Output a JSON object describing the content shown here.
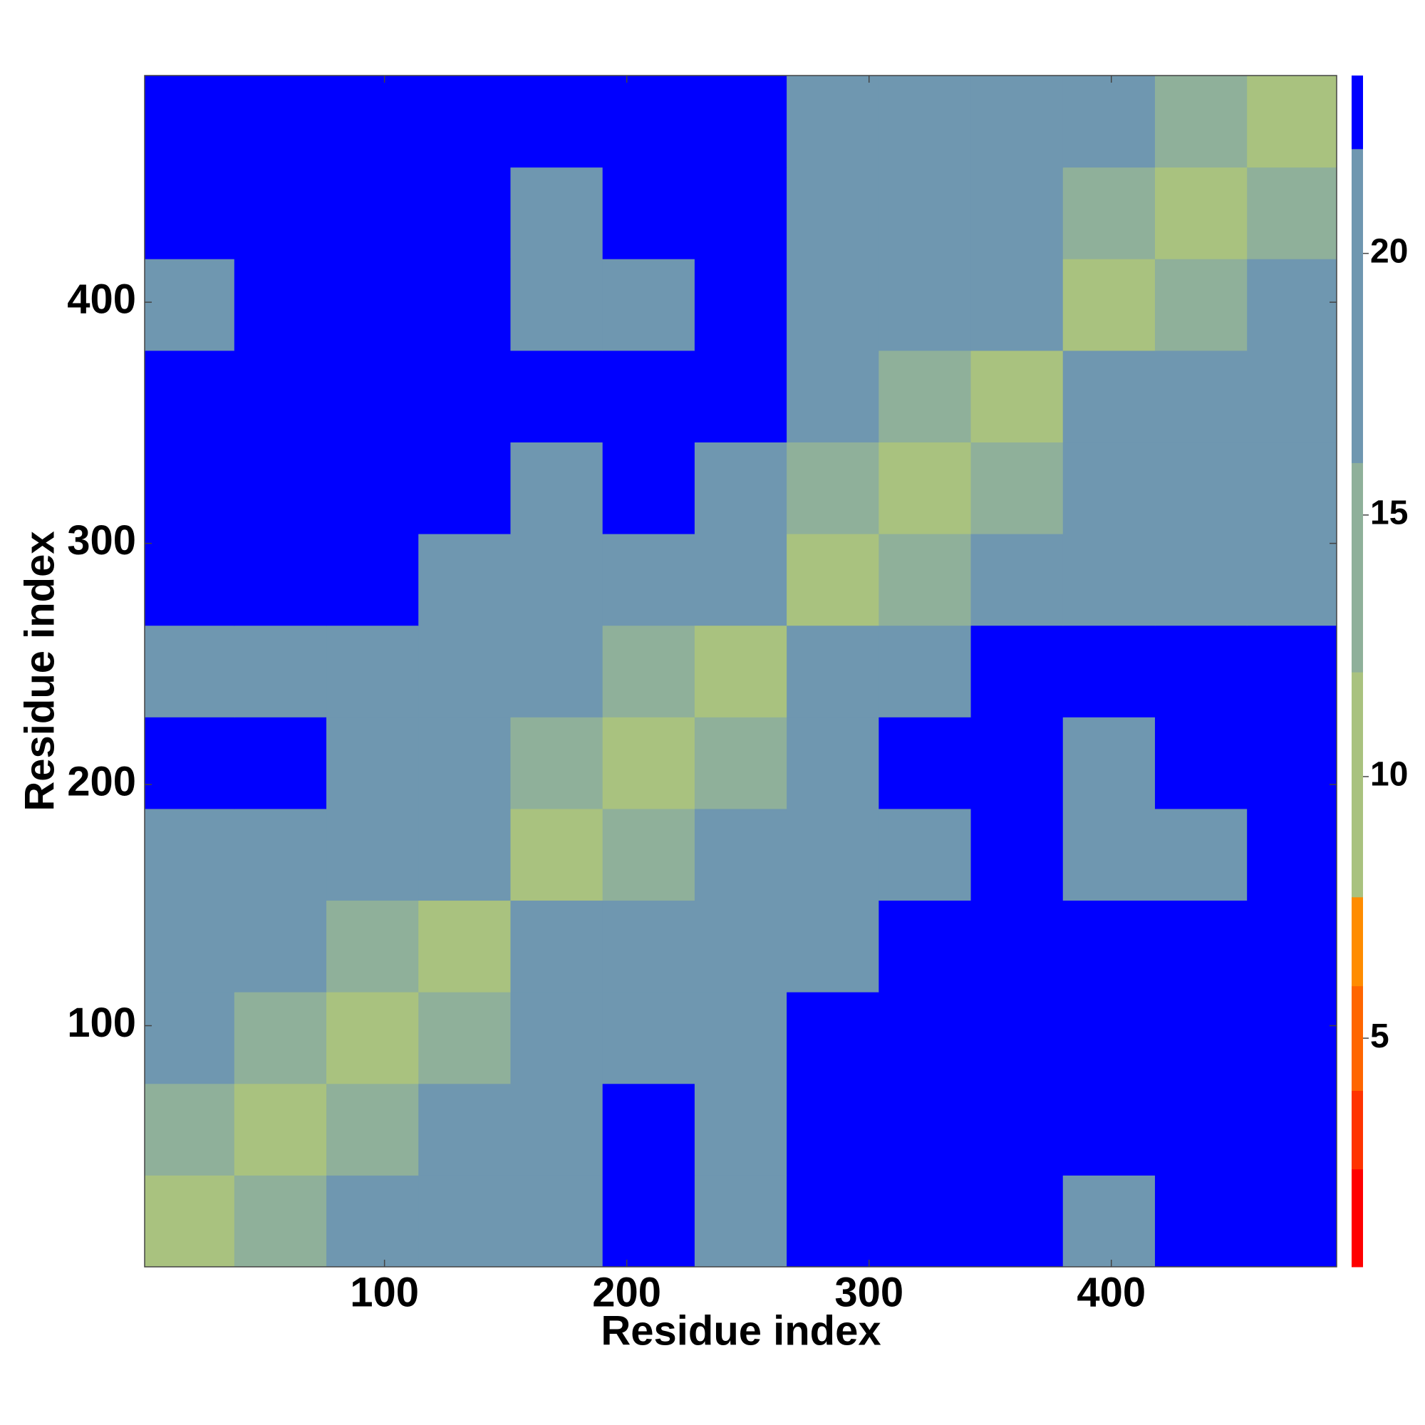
{
  "chart_data": {
    "type": "heatmap",
    "xlabel": "Residue index",
    "ylabel": "Residue index",
    "xlim": [
      1,
      493
    ],
    "ylim": [
      0,
      494
    ],
    "xticks": [
      100,
      200,
      300,
      400
    ],
    "yticks": [
      100,
      200,
      300,
      400
    ],
    "bins": [
      0,
      38,
      76,
      114,
      152,
      190,
      228,
      266,
      304,
      342,
      380,
      418,
      456,
      494
    ],
    "values": [
      [
        9,
        15,
        17,
        17,
        20,
        22,
        21,
        22,
        23,
        23,
        21,
        22,
        23
      ],
      [
        15,
        9,
        15,
        17,
        21,
        22,
        21,
        22,
        23,
        23,
        22,
        23,
        23
      ],
      [
        17,
        15,
        9,
        15,
        20,
        21,
        21,
        22,
        23,
        23,
        23,
        23,
        23
      ],
      [
        17,
        17,
        15,
        10,
        17,
        19,
        21,
        21,
        22,
        22,
        23,
        23,
        23
      ],
      [
        20,
        21,
        20,
        17,
        9,
        15,
        17,
        21,
        21,
        23,
        20,
        21,
        22
      ],
      [
        22,
        22,
        21,
        19,
        15,
        9,
        15,
        19,
        23,
        23,
        21,
        23,
        23
      ],
      [
        21,
        21,
        21,
        21,
        17,
        15,
        10,
        18,
        21,
        23,
        23,
        22,
        22
      ],
      [
        22,
        22,
        22,
        21,
        21,
        19,
        18,
        9,
        15,
        17,
        21,
        21,
        21
      ],
      [
        23,
        23,
        23,
        22,
        21,
        23,
        21,
        15,
        9,
        15,
        20,
        21,
        21
      ],
      [
        23,
        23,
        23,
        22,
        23,
        23,
        23,
        17,
        15,
        10,
        18,
        21,
        21
      ],
      [
        21,
        22,
        23,
        23,
        20,
        21,
        23,
        21,
        20,
        18,
        9,
        15,
        17
      ],
      [
        22,
        23,
        23,
        23,
        21,
        23,
        22,
        21,
        21,
        21,
        15,
        9,
        15
      ],
      [
        23,
        23,
        23,
        23,
        22,
        23,
        22,
        21,
        21,
        21,
        17,
        15,
        9
      ]
    ],
    "clim": [
      0.63,
      23.4
    ],
    "cticks": [
      5,
      10,
      15,
      20
    ],
    "colorscale": [
      {
        "value": 0.63,
        "color": "#ff0000"
      },
      {
        "value": 2.5,
        "color": "#ff3300"
      },
      {
        "value": 4,
        "color": "#ff6600"
      },
      {
        "value": 6,
        "color": "#ff8c00"
      },
      {
        "value": 7.7,
        "color": "#a9c27f"
      },
      {
        "value": 12,
        "color": "#8fb09a"
      },
      {
        "value": 16,
        "color": "#6f97b0"
      },
      {
        "value": 22,
        "color": "#0000ff"
      }
    ]
  }
}
